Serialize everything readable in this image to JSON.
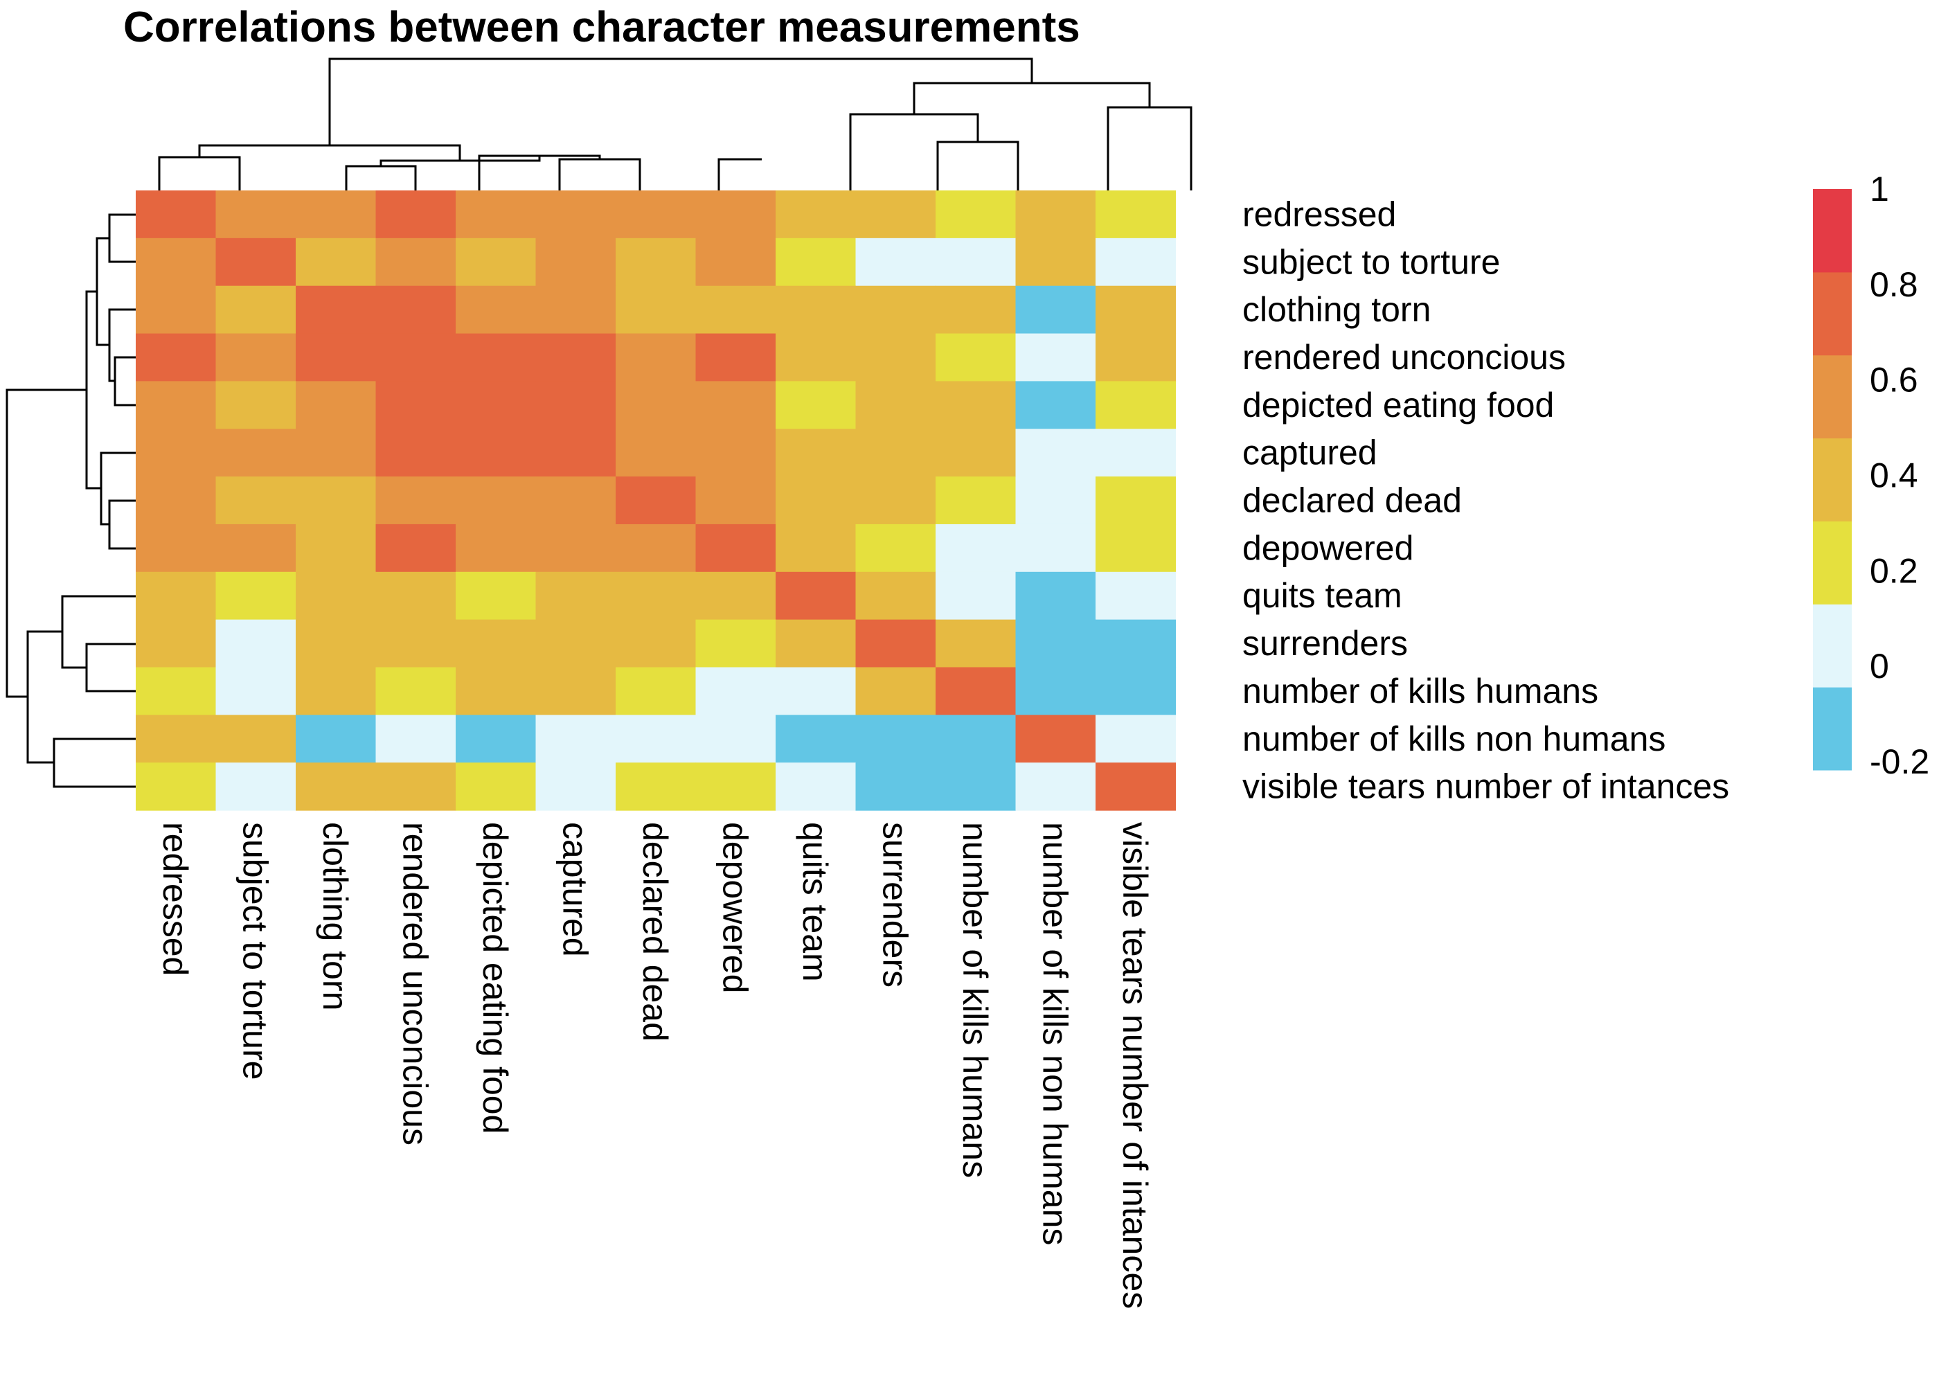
{
  "chart_data": {
    "type": "heatmap",
    "title": "Correlations between character measurements",
    "rows": [
      "redressed",
      "subject to torture",
      "clothing torn",
      "rendered unconcious",
      "depicted eating food",
      "captured",
      "declared dead",
      "depowered",
      "quits team",
      "surrenders",
      "number of kills humans",
      "number of kills non humans",
      "visible tears number of intances"
    ],
    "columns": [
      "redressed",
      "subject to torture",
      "clothing torn",
      "rendered unconcious",
      "depicted eating food",
      "captured",
      "declared dead",
      "depowered",
      "quits team",
      "surrenders",
      "number of kills humans",
      "number of kills non humans",
      "visible tears number of intances"
    ],
    "values": [
      [
        0.9,
        0.7,
        0.7,
        0.9,
        0.7,
        0.7,
        0.7,
        0.7,
        0.4,
        0.4,
        0.2,
        0.4,
        0.2
      ],
      [
        0.7,
        0.9,
        0.5,
        0.7,
        0.5,
        0.7,
        0.5,
        0.7,
        0.2,
        0.0,
        0.0,
        0.4,
        0.0
      ],
      [
        0.7,
        0.5,
        0.9,
        0.9,
        0.7,
        0.7,
        0.5,
        0.5,
        0.4,
        0.4,
        0.4,
        -0.1,
        0.4
      ],
      [
        0.9,
        0.7,
        0.9,
        0.9,
        0.9,
        0.9,
        0.7,
        0.9,
        0.4,
        0.4,
        0.2,
        0.0,
        0.4
      ],
      [
        0.7,
        0.5,
        0.7,
        0.9,
        0.9,
        0.9,
        0.7,
        0.7,
        0.2,
        0.4,
        0.4,
        -0.1,
        0.2
      ],
      [
        0.7,
        0.7,
        0.7,
        0.9,
        0.9,
        0.9,
        0.7,
        0.7,
        0.4,
        0.5,
        0.4,
        0.0,
        0.0
      ],
      [
        0.7,
        0.5,
        0.5,
        0.7,
        0.7,
        0.7,
        0.9,
        0.7,
        0.5,
        0.5,
        0.2,
        0.0,
        0.2
      ],
      [
        0.7,
        0.7,
        0.5,
        0.9,
        0.7,
        0.7,
        0.7,
        0.9,
        0.5,
        0.2,
        0.0,
        0.0,
        0.2
      ],
      [
        0.4,
        0.2,
        0.4,
        0.4,
        0.2,
        0.4,
        0.5,
        0.5,
        0.9,
        0.4,
        0.0,
        -0.1,
        0.0
      ],
      [
        0.4,
        0.0,
        0.4,
        0.4,
        0.4,
        0.5,
        0.5,
        0.2,
        0.4,
        0.9,
        0.5,
        -0.1,
        -0.1
      ],
      [
        0.2,
        0.0,
        0.4,
        0.2,
        0.4,
        0.4,
        0.2,
        0.0,
        0.0,
        0.5,
        0.9,
        -0.1,
        -0.1
      ],
      [
        0.4,
        0.4,
        -0.1,
        0.0,
        -0.1,
        0.0,
        0.0,
        0.0,
        -0.1,
        -0.1,
        -0.1,
        0.9,
        0.0
      ],
      [
        0.2,
        0.0,
        0.4,
        0.4,
        0.2,
        0.0,
        0.2,
        0.2,
        0.0,
        -0.1,
        -0.1,
        0.0,
        0.9
      ]
    ],
    "colorbar": {
      "min": -0.2,
      "max": 1,
      "ticks": [
        "1",
        "0.8",
        "0.6",
        "0.4",
        "0.2",
        "0",
        "-0.2"
      ],
      "bands": [
        {
          "from": -0.2,
          "to": 0.0,
          "color": "#62C6E5"
        },
        {
          "from": 0.0,
          "to": 0.2,
          "color": "#E3F6FB"
        },
        {
          "from": 0.2,
          "to": 0.4,
          "color": "#E5E03E"
        },
        {
          "from": 0.4,
          "to": 0.6,
          "color": "#E6BA42"
        },
        {
          "from": 0.6,
          "to": 0.8,
          "color": "#E69444"
        },
        {
          "from": 0.8,
          "to": 1.0,
          "color": "#E5663F"
        },
        {
          "from": 1.0,
          "to": 1.2,
          "color": "#E43B45"
        }
      ]
    }
  }
}
